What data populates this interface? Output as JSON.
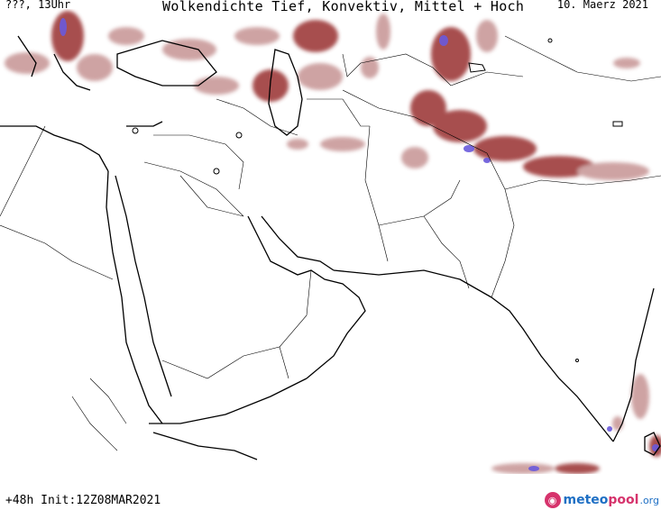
{
  "header": {
    "left_label": "???, 13Uhr",
    "title": "Wolkendichte  Tief, Konvektiv, Mittel + Hoch",
    "date": "10. Maerz 2021"
  },
  "footer": {
    "init_label": "+48h Init:12Z08MAR2021",
    "logo": {
      "meteo": "meteo",
      "pool": "pool",
      "org": ".org",
      "badge_icon": "m-logo-icon"
    }
  },
  "colors": {
    "cloud_light": "#c99a9a",
    "cloud_dense": "#9e3a3a",
    "cloud_max": "#6a5adc",
    "border": "#000000"
  }
}
